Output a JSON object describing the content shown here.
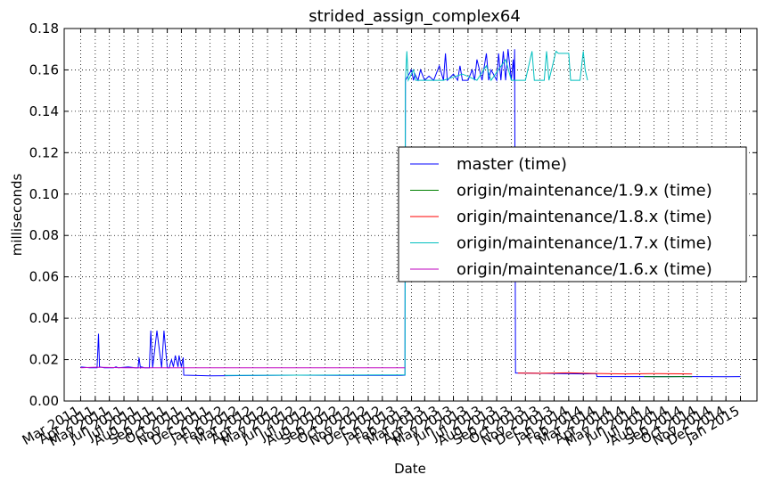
{
  "chart_data": {
    "type": "line",
    "title": "strided_assign_complex64",
    "xlabel": "Date",
    "ylabel": "milliseconds",
    "xlim": [
      "2011-03-01",
      "2015-01-01"
    ],
    "ylim": [
      0,
      0.18
    ],
    "y_ticks": [
      0.0,
      0.02,
      0.04,
      0.06,
      0.08,
      0.1,
      0.12,
      0.14,
      0.16,
      0.18
    ],
    "x_tick_dates": [
      "2011-03-01",
      "2011-04-01",
      "2011-05-01",
      "2011-06-01",
      "2011-07-01",
      "2011-08-01",
      "2011-09-01",
      "2011-10-01",
      "2011-11-01",
      "2011-12-01",
      "2012-01-01",
      "2012-02-01",
      "2012-03-01",
      "2012-04-01",
      "2012-05-01",
      "2012-06-01",
      "2012-07-01",
      "2012-08-01",
      "2012-09-01",
      "2012-10-01",
      "2012-11-01",
      "2012-12-01",
      "2013-01-01",
      "2013-02-01",
      "2013-03-01",
      "2013-04-01",
      "2013-05-01",
      "2013-06-01",
      "2013-07-01",
      "2013-08-01",
      "2013-09-01",
      "2013-10-01",
      "2013-11-01",
      "2013-12-01",
      "2014-01-01",
      "2014-02-01",
      "2014-03-01",
      "2014-04-01",
      "2014-05-01",
      "2014-06-01",
      "2014-07-01",
      "2014-08-01",
      "2014-09-01",
      "2014-10-01",
      "2014-11-01",
      "2014-12-01",
      "2015-01-01"
    ],
    "x_tick_labels": [
      "Mar 2011",
      "Apr 2011",
      "May 2011",
      "Jun 2011",
      "Jul 2011",
      "Aug 2011",
      "Sep 2011",
      "Oct 2011",
      "Nov 2011",
      "Dec 2011",
      "Jan 2012",
      "Feb 2012",
      "Mar 2012",
      "Apr 2012",
      "May 2012",
      "Jun 2012",
      "Jul 2012",
      "Aug 2012",
      "Sep 2012",
      "Oct 2012",
      "Nov 2012",
      "Dec 2012",
      "Jan 2013",
      "Feb 2013",
      "Mar 2013",
      "Apr 2013",
      "May 2013",
      "Jun 2013",
      "Jul 2013",
      "Aug 2013",
      "Sep 2013",
      "Oct 2013",
      "Nov 2013",
      "Dec 2013",
      "Jan 2014",
      "Feb 2014",
      "Mar 2014",
      "Apr 2014",
      "May 2014",
      "Jun 2014",
      "Jul 2014",
      "Aug 2014",
      "Sep 2014",
      "Oct 2014",
      "Nov 2014",
      "Dec 2014",
      "Jan 2015"
    ],
    "grid": true,
    "legend_position": "center-right",
    "series": [
      {
        "name": "master (time)",
        "color": "#0000ff",
        "x": [
          "2011-03-01",
          "2011-03-20",
          "2011-04-05",
          "2011-04-08",
          "2011-04-10",
          "2011-04-20",
          "2011-05-10",
          "2011-05-15",
          "2011-05-20",
          "2011-06-10",
          "2011-06-25",
          "2011-07-01",
          "2011-07-03",
          "2011-07-06",
          "2011-07-08",
          "2011-07-15",
          "2011-07-25",
          "2011-07-28",
          "2011-08-01",
          "2011-08-10",
          "2011-08-20",
          "2011-08-25",
          "2011-09-01",
          "2011-09-05",
          "2011-09-10",
          "2011-09-14",
          "2011-09-18",
          "2011-09-24",
          "2011-09-26",
          "2011-10-01",
          "2011-10-05",
          "2011-10-06",
          "2011-12-01",
          "2012-03-01",
          "2012-06-01",
          "2012-09-01",
          "2012-12-01",
          "2013-01-10",
          "2013-01-18",
          "2013-01-19",
          "2013-02-01",
          "2013-02-05",
          "2013-02-08",
          "2013-02-15",
          "2013-02-20",
          "2013-03-01",
          "2013-03-10",
          "2013-03-20",
          "2013-04-01",
          "2013-04-10",
          "2013-04-14",
          "2013-04-18",
          "2013-05-01",
          "2013-05-10",
          "2013-05-15",
          "2013-05-20",
          "2013-06-01",
          "2013-06-10",
          "2013-06-15",
          "2013-06-20",
          "2013-07-01",
          "2013-07-10",
          "2013-07-15",
          "2013-07-20",
          "2013-08-01",
          "2013-08-05",
          "2013-08-10",
          "2013-08-15",
          "2013-08-20",
          "2013-08-25",
          "2013-09-01",
          "2013-09-05",
          "2013-09-07",
          "2013-09-08",
          "2013-09-10",
          "2013-10-01",
          "2013-12-01",
          "2014-02-01",
          "2014-03-01",
          "2014-03-02",
          "2014-05-01",
          "2014-08-01",
          "2014-10-01",
          "2014-12-01",
          "2015-01-01"
        ],
        "y": [
          0.0165,
          0.016,
          0.016,
          0.0325,
          0.0165,
          0.016,
          0.016,
          0.0165,
          0.016,
          0.0165,
          0.016,
          0.016,
          0.021,
          0.016,
          0.0165,
          0.016,
          0.016,
          0.034,
          0.016,
          0.034,
          0.016,
          0.034,
          0.016,
          0.016,
          0.02,
          0.0165,
          0.022,
          0.0165,
          0.022,
          0.0165,
          0.021,
          0.0125,
          0.0122,
          0.0123,
          0.0125,
          0.0124,
          0.0124,
          0.0124,
          0.0125,
          0.155,
          0.16,
          0.155,
          0.158,
          0.155,
          0.16,
          0.155,
          0.157,
          0.155,
          0.162,
          0.155,
          0.168,
          0.155,
          0.158,
          0.155,
          0.162,
          0.155,
          0.155,
          0.16,
          0.155,
          0.165,
          0.155,
          0.168,
          0.155,
          0.16,
          0.155,
          0.168,
          0.155,
          0.169,
          0.155,
          0.17,
          0.155,
          0.165,
          0.155,
          0.17,
          0.0135,
          0.0135,
          0.0133,
          0.0131,
          0.0132,
          0.0118,
          0.0118,
          0.0118,
          0.0118,
          0.0117,
          0.0118
        ]
      },
      {
        "name": "origin/maintenance/1.9.x (time)",
        "color": "#008000",
        "x": [
          "2014-06-10",
          "2014-07-01",
          "2014-08-01",
          "2014-09-01",
          "2014-09-20"
        ],
        "y": [
          0.0118,
          0.0117,
          0.0117,
          0.0118,
          0.0117
        ]
      },
      {
        "name": "origin/maintenance/1.8.x (time)",
        "color": "#ff0000",
        "x": [
          "2013-09-15",
          "2013-11-01",
          "2014-01-01",
          "2014-03-01",
          "2014-05-01",
          "2014-07-01",
          "2014-09-20"
        ],
        "y": [
          0.0135,
          0.0134,
          0.0136,
          0.0133,
          0.0131,
          0.0132,
          0.0131
        ]
      },
      {
        "name": "origin/maintenance/1.7.x (time)",
        "color": "#00bfbf",
        "x": [
          "2012-01-01",
          "2012-06-01",
          "2012-12-01",
          "2013-01-18",
          "2013-01-19",
          "2013-01-22",
          "2013-01-25",
          "2013-02-05",
          "2013-02-10",
          "2013-03-01",
          "2013-04-10",
          "2013-05-20",
          "2013-06-20",
          "2013-07-10",
          "2013-07-20",
          "2013-08-20",
          "2013-09-01",
          "2013-09-15",
          "2013-10-01",
          "2013-10-15",
          "2013-10-20",
          "2013-10-25",
          "2013-11-10",
          "2013-11-15",
          "2013-11-20",
          "2013-12-05",
          "2013-12-10",
          "2014-01-01",
          "2014-01-05",
          "2014-01-25",
          "2014-02-01",
          "2014-02-05",
          "2014-02-10"
        ],
        "y": [
          0.0124,
          0.0125,
          0.0126,
          0.0126,
          0.155,
          0.169,
          0.155,
          0.16,
          0.155,
          0.155,
          0.155,
          0.158,
          0.155,
          0.162,
          0.155,
          0.165,
          0.155,
          0.155,
          0.155,
          0.169,
          0.155,
          0.155,
          0.155,
          0.169,
          0.155,
          0.169,
          0.168,
          0.168,
          0.155,
          0.155,
          0.169,
          0.16,
          0.155
        ]
      },
      {
        "name": "origin/maintenance/1.6.x (time)",
        "color": "#bf00bf",
        "x": [
          "2011-03-01",
          "2011-04-01",
          "2011-06-01",
          "2011-10-01",
          "2012-03-01",
          "2012-09-01",
          "2013-01-18"
        ],
        "y": [
          0.016,
          0.0163,
          0.016,
          0.016,
          0.016,
          0.016,
          0.016
        ]
      }
    ]
  }
}
